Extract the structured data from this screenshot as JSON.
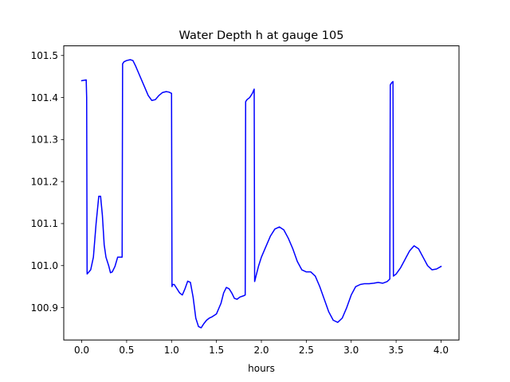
{
  "chart_data": {
    "type": "line",
    "title": "Water Depth h at gauge 105",
    "xlabel": "hours",
    "ylabel": "",
    "xlim": [
      -0.2,
      4.2
    ],
    "ylim": [
      100.823,
      101.523
    ],
    "xticks": [
      0.0,
      0.5,
      1.0,
      1.5,
      2.0,
      2.5,
      3.0,
      3.5,
      4.0
    ],
    "xtick_labels": [
      "0.0",
      "0.5",
      "1.0",
      "1.5",
      "2.0",
      "2.5",
      "3.0",
      "3.5",
      "4.0"
    ],
    "yticks": [
      100.9,
      101.0,
      101.1,
      101.2,
      101.3,
      101.4,
      101.5
    ],
    "ytick_labels": [
      "100.9",
      "101.0",
      "101.1",
      "101.2",
      "101.3",
      "101.4",
      "101.5"
    ],
    "grid": false,
    "series": [
      {
        "color": "#0000ff",
        "x": [
          0.0,
          0.05,
          0.055,
          0.06,
          0.1,
          0.13,
          0.16,
          0.19,
          0.21,
          0.23,
          0.25,
          0.27,
          0.3,
          0.32,
          0.34,
          0.37,
          0.4,
          0.45,
          0.455,
          0.47,
          0.5,
          0.54,
          0.57,
          0.6,
          0.63,
          0.66,
          0.7,
          0.74,
          0.78,
          0.82,
          0.86,
          0.9,
          0.94,
          0.97,
          1.0,
          1.005,
          1.01,
          1.03,
          1.06,
          1.09,
          1.12,
          1.15,
          1.18,
          1.21,
          1.24,
          1.27,
          1.3,
          1.33,
          1.36,
          1.39,
          1.42,
          1.45,
          1.5,
          1.55,
          1.58,
          1.61,
          1.64,
          1.67,
          1.7,
          1.73,
          1.76,
          1.8,
          1.82,
          1.825,
          1.84,
          1.87,
          1.9,
          1.92,
          1.925,
          1.94,
          1.97,
          2.0,
          2.05,
          2.1,
          2.15,
          2.2,
          2.25,
          2.3,
          2.35,
          2.4,
          2.45,
          2.5,
          2.55,
          2.6,
          2.65,
          2.7,
          2.75,
          2.8,
          2.85,
          2.9,
          2.95,
          3.0,
          3.05,
          3.1,
          3.15,
          3.2,
          3.25,
          3.3,
          3.35,
          3.4,
          3.43,
          3.435,
          3.45,
          3.465,
          3.47,
          3.5,
          3.55,
          3.6,
          3.65,
          3.7,
          3.75,
          3.8,
          3.85,
          3.9,
          3.95,
          4.0
        ],
        "y": [
          101.44,
          101.442,
          101.4,
          100.98,
          100.99,
          101.02,
          101.1,
          101.165,
          101.165,
          101.12,
          101.05,
          101.02,
          101.0,
          100.983,
          100.985,
          100.998,
          101.02,
          101.02,
          101.48,
          101.485,
          101.488,
          101.49,
          101.488,
          101.475,
          101.46,
          101.445,
          101.425,
          101.405,
          101.393,
          101.395,
          101.405,
          101.412,
          101.414,
          101.413,
          101.41,
          100.95,
          100.955,
          100.955,
          100.945,
          100.935,
          100.93,
          100.945,
          100.963,
          100.96,
          100.925,
          100.875,
          100.855,
          100.852,
          100.862,
          100.87,
          100.875,
          100.878,
          100.885,
          100.91,
          100.935,
          100.948,
          100.945,
          100.935,
          100.922,
          100.92,
          100.925,
          100.928,
          100.93,
          101.39,
          101.395,
          101.4,
          101.41,
          101.42,
          100.962,
          100.975,
          101.0,
          101.02,
          101.045,
          101.07,
          101.087,
          101.092,
          101.085,
          101.065,
          101.04,
          101.01,
          100.99,
          100.985,
          100.985,
          100.975,
          100.95,
          100.92,
          100.89,
          100.87,
          100.865,
          100.875,
          100.9,
          100.93,
          100.95,
          100.955,
          100.957,
          100.957,
          100.958,
          100.96,
          100.958,
          100.962,
          100.968,
          101.43,
          101.435,
          101.438,
          100.975,
          100.98,
          100.995,
          101.015,
          101.035,
          101.047,
          101.04,
          101.02,
          101.0,
          100.99,
          100.992,
          100.998
        ]
      }
    ]
  }
}
